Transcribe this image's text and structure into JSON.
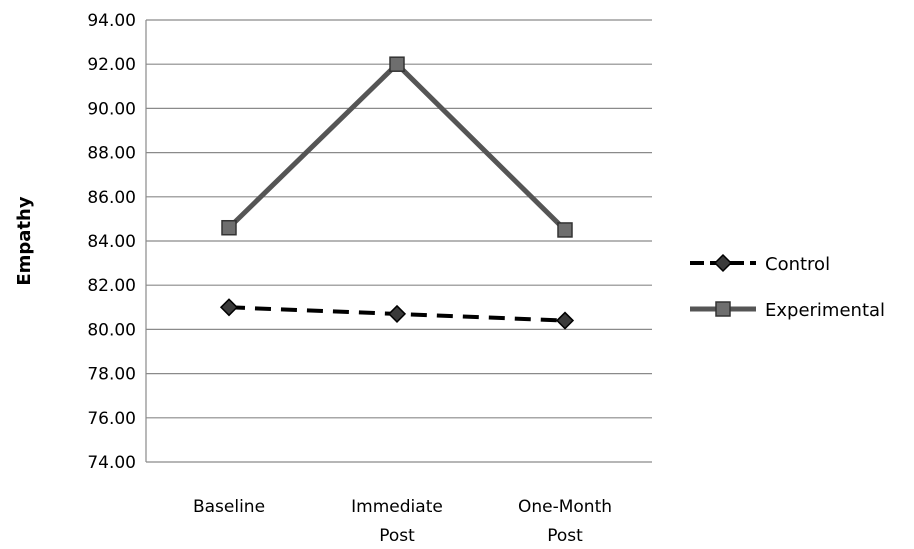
{
  "chart_data": {
    "type": "line",
    "title": "",
    "xlabel": "",
    "ylabel": "Empathy",
    "ylim": [
      74,
      94
    ],
    "yticks": [
      "74.00",
      "76.00",
      "78.00",
      "80.00",
      "82.00",
      "84.00",
      "86.00",
      "88.00",
      "90.00",
      "92.00",
      "94.00"
    ],
    "categories": [
      [
        "Baseline"
      ],
      [
        "Immediate",
        "Post"
      ],
      [
        "One-Month",
        "Post"
      ]
    ],
    "grid": true,
    "legend_position": "right",
    "series": [
      {
        "name": "Control",
        "values": [
          81.0,
          80.7,
          80.4
        ],
        "color": "#000000",
        "line_style": "dashed",
        "marker": "diamond"
      },
      {
        "name": "Experimental",
        "values": [
          84.6,
          92.0,
          84.5
        ],
        "color": "#555555",
        "line_style": "solid",
        "marker": "square"
      }
    ]
  }
}
